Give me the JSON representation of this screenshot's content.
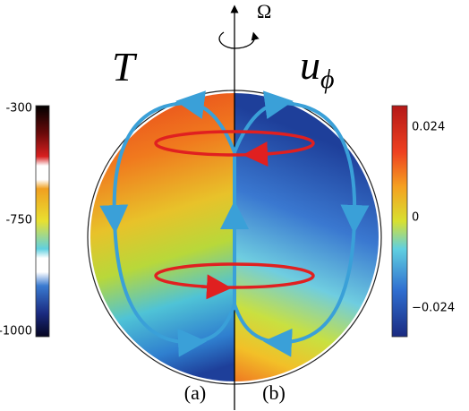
{
  "header": {
    "axis_symbol": "Ω",
    "left_title": "T",
    "right_title_base": "u",
    "right_title_sub": "ϕ"
  },
  "left_colorbar": {
    "ticks": [
      "-300",
      "-750",
      "-1000"
    ]
  },
  "right_colorbar": {
    "ticks": [
      "0.024",
      "0",
      "−0.024"
    ]
  },
  "panels": [
    "(a)",
    "(b)"
  ]
}
